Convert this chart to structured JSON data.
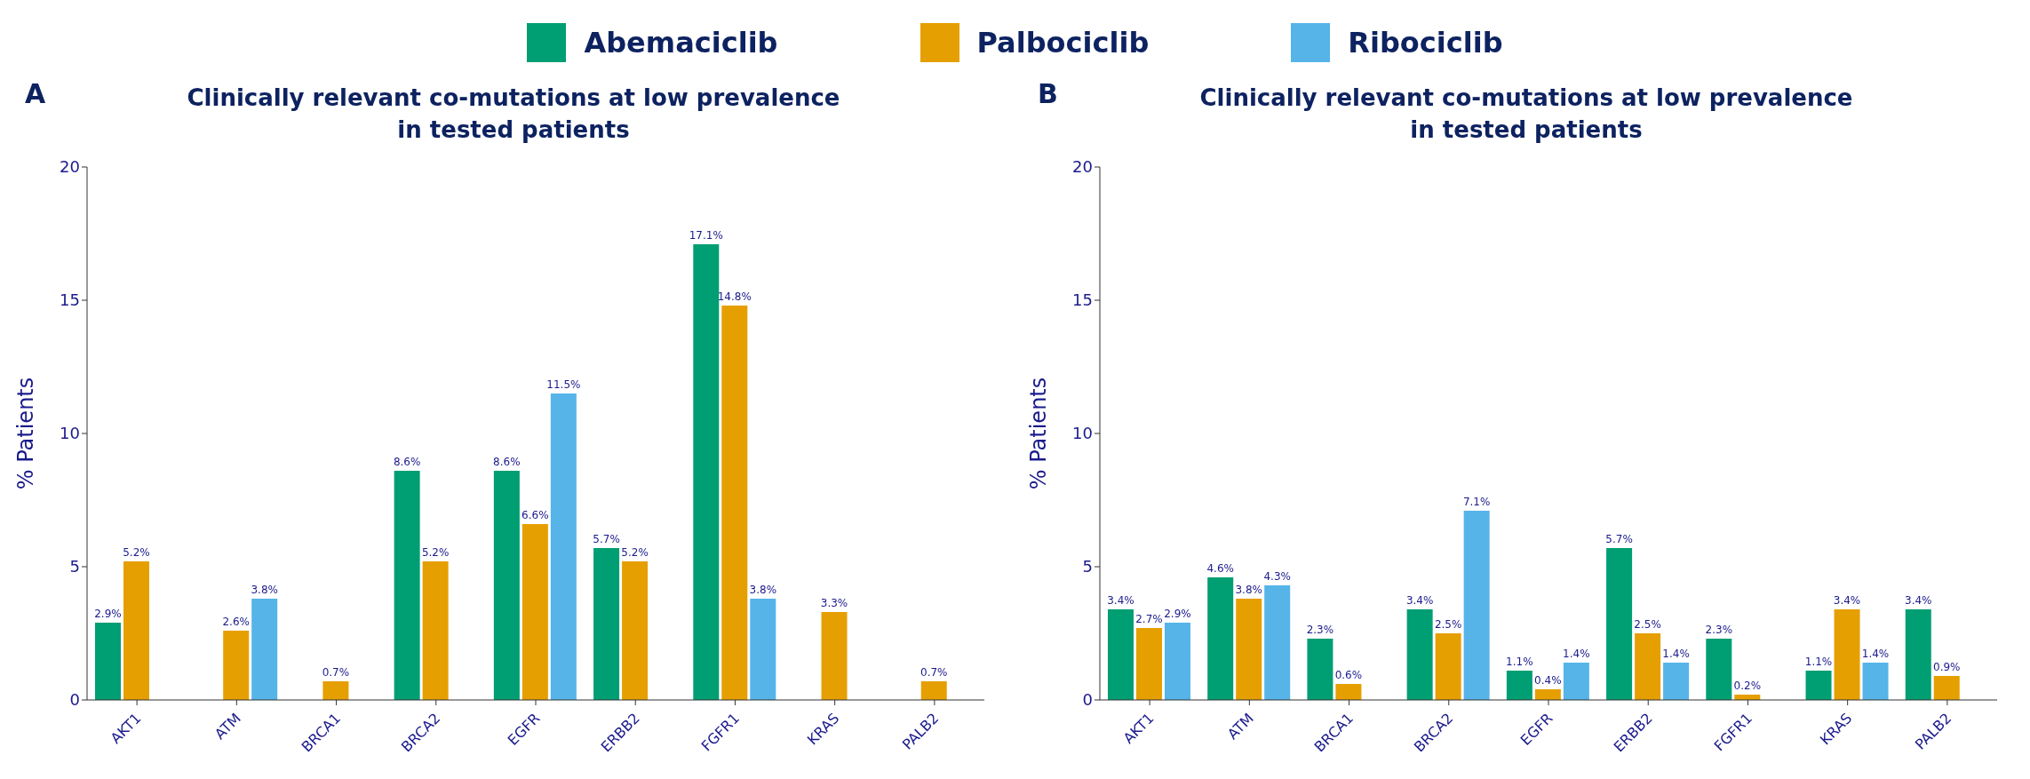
{
  "chart_data": [
    {
      "type": "bar",
      "title": "Clinically relevant co-mutations at low prevalence\nin tested patients",
      "annotations": [
        "A"
      ],
      "ylabel": "% Patients",
      "categories": [
        "AKT1",
        "ATM",
        "BRCA1",
        "BRCA2",
        "EGFR",
        "ERBB2",
        "FGFR1",
        "KRAS",
        "PALB2"
      ],
      "ylim": [
        0,
        20
      ],
      "yticks": [
        0,
        5,
        10,
        15,
        20
      ],
      "grid": false,
      "legend": "top",
      "series": [
        {
          "name": "Abemaciclib",
          "color": "#009e73",
          "values": [
            2.9,
            null,
            null,
            8.6,
            8.6,
            5.7,
            17.1,
            null,
            null
          ],
          "value_labels": [
            "2.9%",
            null,
            null,
            "8.6%",
            "8.6%",
            "5.7%",
            "17.1%",
            null,
            null
          ]
        },
        {
          "name": "Palbociclib",
          "color": "#e69f00",
          "values": [
            5.2,
            2.6,
            0.7,
            5.2,
            6.6,
            5.2,
            14.8,
            3.3,
            0.7
          ],
          "value_labels": [
            "5.2%",
            "2.6%",
            "0.7%",
            "5.2%",
            "6.6%",
            "5.2%",
            "14.8%",
            "3.3%",
            "0.7%"
          ]
        },
        {
          "name": "Ribociclib",
          "color": "#56b4e9",
          "values": [
            null,
            3.8,
            null,
            null,
            11.5,
            null,
            3.8,
            null,
            null
          ],
          "value_labels": [
            null,
            "3.8%",
            null,
            null,
            "11.5%",
            null,
            "3.8%",
            null,
            null
          ]
        }
      ]
    },
    {
      "type": "bar",
      "title": "Clinically relevant co-mutations at low prevalence\nin tested patients",
      "annotations": [
        "B"
      ],
      "ylabel": "% Patients",
      "categories": [
        "AKT1",
        "ATM",
        "BRCA1",
        "BRCA2",
        "EGFR",
        "ERBB2",
        "FGFR1",
        "KRAS",
        "PALB2"
      ],
      "ylim": [
        0,
        20
      ],
      "yticks": [
        0,
        5,
        10,
        15,
        20
      ],
      "grid": false,
      "series": [
        {
          "name": "Abemaciclib",
          "color": "#009e73",
          "values": [
            3.4,
            4.6,
            2.3,
            3.4,
            1.1,
            5.7,
            2.3,
            1.1,
            3.4
          ],
          "value_labels": [
            "3.4%",
            "4.6%",
            "2.3%",
            "3.4%",
            "1.1%",
            "5.7%",
            "2.3%",
            "1.1%",
            "3.4%"
          ]
        },
        {
          "name": "Palbociclib",
          "color": "#e69f00",
          "values": [
            2.7,
            3.8,
            0.6,
            2.5,
            0.4,
            2.5,
            0.2,
            3.4,
            0.9
          ],
          "value_labels": [
            "2.7%",
            "3.8%",
            "0.6%",
            "2.5%",
            "0.4%",
            "2.5%",
            "0.2%",
            "3.4%",
            "0.9%"
          ]
        },
        {
          "name": "Ribociclib",
          "color": "#56b4e9",
          "values": [
            2.9,
            4.3,
            null,
            7.1,
            1.4,
            1.4,
            null,
            1.4,
            null
          ],
          "value_labels": [
            "2.9%",
            "4.3%",
            null,
            "7.1%",
            "1.4%",
            "1.4%",
            null,
            "1.4%",
            null
          ]
        }
      ]
    }
  ]
}
